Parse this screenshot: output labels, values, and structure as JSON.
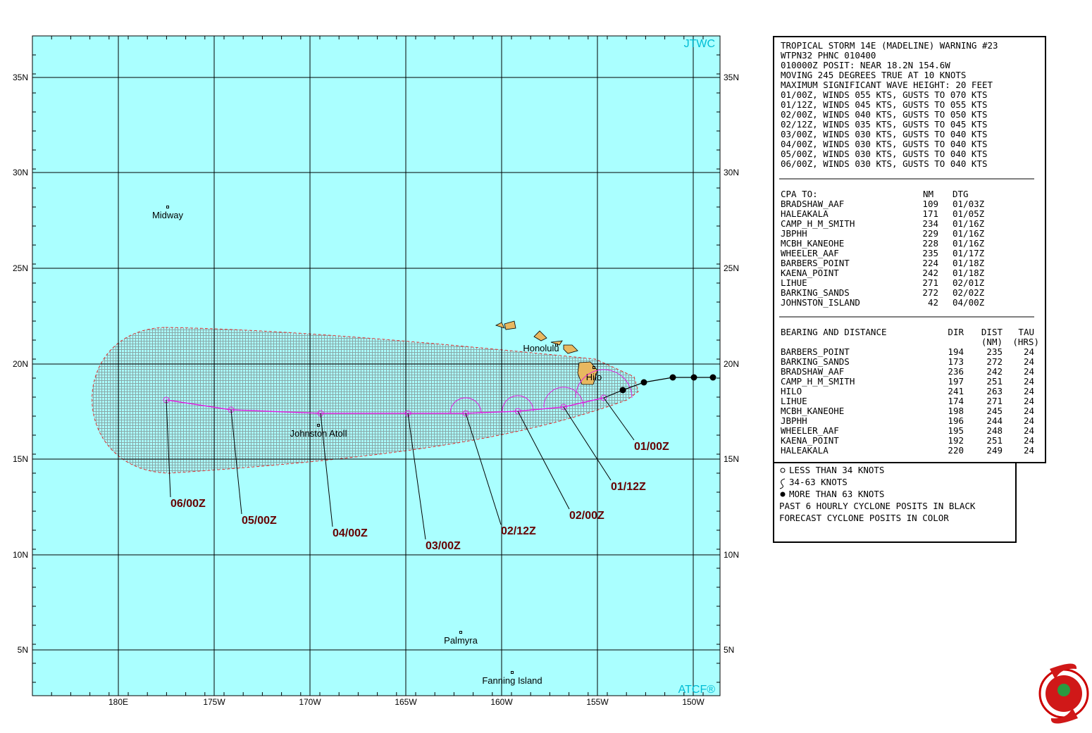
{
  "map": {
    "corner_labels": {
      "top": "JTWC",
      "bottom": "ATCF®"
    },
    "lat_labels": [
      "35N",
      "30N",
      "25N",
      "20N",
      "15N",
      "10N",
      "5N"
    ],
    "lon_labels": [
      "180E",
      "175W",
      "170W",
      "165W",
      "160W",
      "155W",
      "150W"
    ],
    "places": [
      "Midway",
      "Honolulu",
      "Hilo",
      "Johnston Atoll",
      "Palmyra",
      "Fanning Island"
    ],
    "forecast_labels": [
      "01/00Z",
      "01/12Z",
      "02/00Z",
      "02/12Z",
      "03/00Z",
      "04/00Z",
      "05/00Z",
      "06/00Z"
    ]
  },
  "warning": {
    "lines": [
      "TROPICAL STORM 14E (MADELINE) WARNING #23",
      "WTPN32 PHNC 010400",
      "010000Z POSIT: NEAR 18.2N 154.6W",
      "MOVING 245 DEGREES TRUE AT 10 KNOTS",
      "MAXIMUM SIGNIFICANT WAVE HEIGHT: 20 FEET",
      "01/00Z, WINDS 055 KTS, GUSTS TO 070 KTS",
      "01/12Z, WINDS 045 KTS, GUSTS TO 055 KTS",
      "02/00Z, WINDS 040 KTS, GUSTS TO 050 KTS",
      "02/12Z, WINDS 035 KTS, GUSTS TO 045 KTS",
      "03/00Z, WINDS 030 KTS, GUSTS TO 040 KTS",
      "04/00Z, WINDS 030 KTS, GUSTS TO 040 KTS",
      "05/00Z, WINDS 030 KTS, GUSTS TO 040 KTS",
      "06/00Z, WINDS 030 KTS, GUSTS TO 040 KTS"
    ]
  },
  "cpa": {
    "header": [
      "CPA TO:",
      "NM",
      "DTG"
    ],
    "rows": [
      [
        "BRADSHAW_AAF",
        "109",
        "01/03Z"
      ],
      [
        "HALEAKALA",
        "171",
        "01/05Z"
      ],
      [
        "CAMP_H_M_SMITH",
        "234",
        "01/16Z"
      ],
      [
        "JBPHH",
        "229",
        "01/16Z"
      ],
      [
        "MCBH_KANEOHE",
        "228",
        "01/16Z"
      ],
      [
        "WHEELER_AAF",
        "235",
        "01/17Z"
      ],
      [
        "BARBERS_POINT",
        "224",
        "01/18Z"
      ],
      [
        "KAENA_POINT",
        "242",
        "01/18Z"
      ],
      [
        "LIHUE",
        "271",
        "02/01Z"
      ],
      [
        "BARKING_SANDS",
        "272",
        "02/02Z"
      ],
      [
        "JOHNSTON_ISLAND",
        "42",
        "04/00Z"
      ]
    ]
  },
  "bearing": {
    "header": [
      "BEARING AND DISTANCE",
      "DIR",
      "DIST",
      "TAU"
    ],
    "units": [
      "(NM)",
      "(HRS)"
    ],
    "rows": [
      [
        "BARBERS_POINT",
        "194",
        "235",
        "24"
      ],
      [
        "BARKING_SANDS",
        "173",
        "272",
        "24"
      ],
      [
        "BRADSHAW_AAF",
        "236",
        "242",
        "24"
      ],
      [
        "CAMP_H_M_SMITH",
        "197",
        "251",
        "24"
      ],
      [
        "HILO",
        "241",
        "263",
        "24"
      ],
      [
        "LIHUE",
        "174",
        "271",
        "24"
      ],
      [
        "MCBH_KANEOHE",
        "198",
        "245",
        "24"
      ],
      [
        "JBPHH",
        "196",
        "244",
        "24"
      ],
      [
        "WHEELER_AAF",
        "195",
        "248",
        "24"
      ],
      [
        "KAENA_POINT",
        "192",
        "251",
        "24"
      ],
      [
        "HALEAKALA",
        "220",
        "249",
        "24"
      ]
    ]
  },
  "legend": {
    "lines": [
      "LESS THAN 34 KNOTS",
      "34-63 KNOTS",
      "MORE THAN 63 KNOTS",
      "PAST 6 HOURLY CYCLONE POSITS IN BLACK",
      "FORECAST CYCLONE POSITS IN COLOR"
    ]
  }
}
